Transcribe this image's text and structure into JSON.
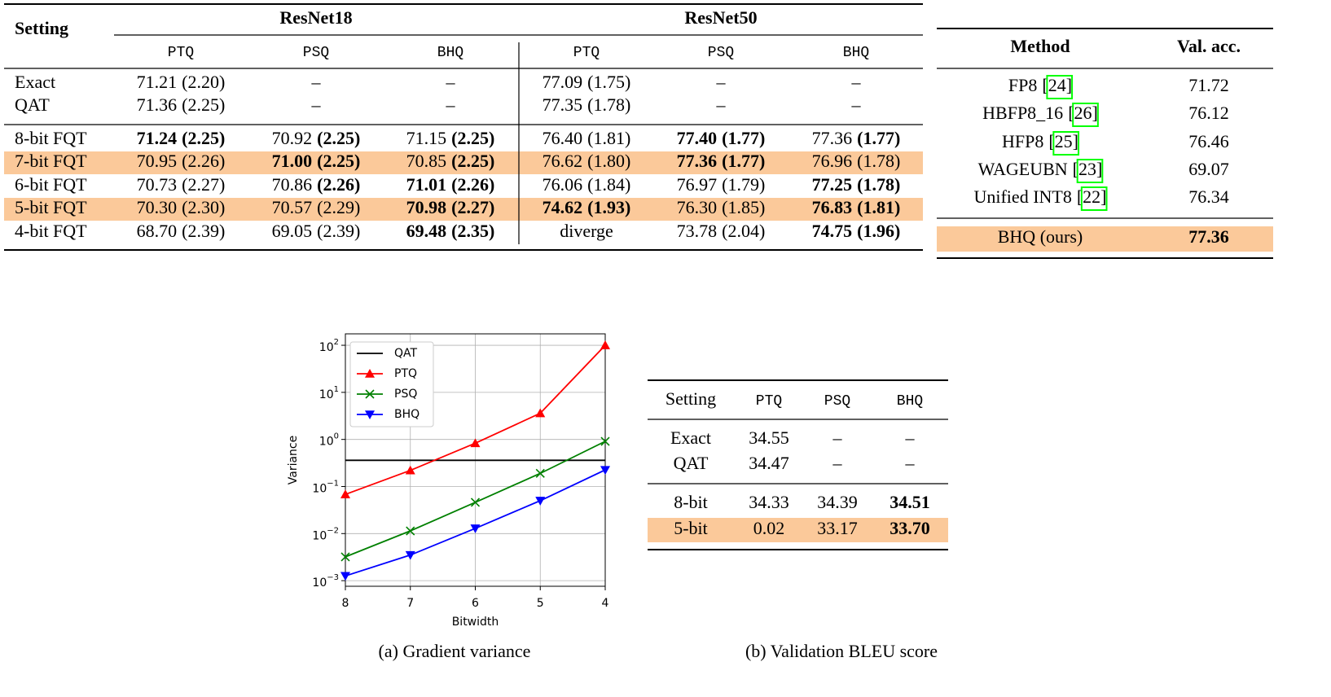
{
  "main_table": {
    "header": "Setting",
    "groups": [
      "ResNet18",
      "ResNet50"
    ],
    "columns": [
      "PTQ",
      "PSQ",
      "BHQ",
      "PTQ",
      "PSQ",
      "BHQ"
    ],
    "rows": [
      {
        "label": "Exact",
        "cells": [
          {
            "acc": "71.21",
            "var": "(2.20)"
          },
          {
            "text": "–"
          },
          {
            "text": "–"
          },
          {
            "acc": "77.09",
            "var": "(1.75)"
          },
          {
            "text": "–"
          },
          {
            "text": "–"
          }
        ]
      },
      {
        "label": "QAT",
        "cells": [
          {
            "acc": "71.36",
            "var": "(2.25)"
          },
          {
            "text": "–"
          },
          {
            "text": "–"
          },
          {
            "acc": "77.35",
            "var": "(1.78)"
          },
          {
            "text": "–"
          },
          {
            "text": "–"
          }
        ]
      },
      {
        "label": "8-bit FQT",
        "rule_before": true,
        "cells": [
          {
            "acc": "71.24",
            "var": "(2.25)",
            "acc_bold": true,
            "var_bold": true
          },
          {
            "acc": "70.92",
            "var": "(2.25)",
            "var_bold": true
          },
          {
            "acc": "71.15",
            "var": "(2.25)",
            "var_bold": true
          },
          {
            "acc": "76.40",
            "var": "(1.81)"
          },
          {
            "acc": "77.40",
            "var": "(1.77)",
            "acc_bold": true,
            "var_bold": true
          },
          {
            "acc": "77.36",
            "var": "(1.77)",
            "var_bold": true
          }
        ]
      },
      {
        "label": "7-bit FQT",
        "highlight": true,
        "cells": [
          {
            "acc": "70.95",
            "var": "(2.26)"
          },
          {
            "acc": "71.00",
            "var": "(2.25)",
            "acc_bold": true,
            "var_bold": true
          },
          {
            "acc": "70.85",
            "var": "(2.25)",
            "var_bold": true
          },
          {
            "acc": "76.62",
            "var": "(1.80)"
          },
          {
            "acc": "77.36",
            "var": "(1.77)",
            "acc_bold": true,
            "var_bold": true
          },
          {
            "acc": "76.96",
            "var": "(1.78)"
          }
        ]
      },
      {
        "label": "6-bit FQT",
        "cells": [
          {
            "acc": "70.73",
            "var": "(2.27)"
          },
          {
            "acc": "70.86",
            "var": "(2.26)",
            "var_bold": true
          },
          {
            "acc": "71.01",
            "var": "(2.26)",
            "acc_bold": true,
            "var_bold": true
          },
          {
            "acc": "76.06",
            "var": "(1.84)"
          },
          {
            "acc": "76.97",
            "var": "(1.79)"
          },
          {
            "acc": "77.25",
            "var": "(1.78)",
            "acc_bold": true,
            "var_bold": true
          }
        ]
      },
      {
        "label": "5-bit FQT",
        "highlight": true,
        "cells": [
          {
            "acc": "70.30",
            "var": "(2.30)"
          },
          {
            "acc": "70.57",
            "var": "(2.29)"
          },
          {
            "acc": "70.98",
            "var": "(2.27)",
            "acc_bold": true,
            "var_bold": true
          },
          {
            "acc": "74.62",
            "var": "(1.93)",
            "acc_bold": true,
            "var_bold": true
          },
          {
            "acc": "76.30",
            "var": "(1.85)"
          },
          {
            "acc": "76.83",
            "var": "(1.81)",
            "acc_bold": true,
            "var_bold": true
          }
        ]
      },
      {
        "label": "4-bit FQT",
        "cells": [
          {
            "acc": "68.70",
            "var": "(2.39)"
          },
          {
            "acc": "69.05",
            "var": "(2.39)"
          },
          {
            "acc": "69.48",
            "var": "(2.35)",
            "acc_bold": true,
            "var_bold": true
          },
          {
            "text": "diverge"
          },
          {
            "acc": "73.78",
            "var": "(2.04)"
          },
          {
            "acc": "74.75",
            "var": "(1.96)",
            "acc_bold": true,
            "var_bold": true
          }
        ]
      }
    ]
  },
  "method_table": {
    "columns": [
      "Method",
      "Val. acc."
    ],
    "rows": [
      {
        "method": "FP8",
        "cite": "[24]",
        "acc": "71.72"
      },
      {
        "method": "HBFP8_16",
        "cite": "[26]",
        "acc": "76.12"
      },
      {
        "method": "HFP8",
        "cite": "[25]",
        "acc": "76.46"
      },
      {
        "method": "WAGEUBN",
        "cite": "[23]",
        "acc": "69.07"
      },
      {
        "method": "Unified INT8",
        "cite": "[22]",
        "acc": "76.34"
      },
      {
        "method": "BHQ (ours)",
        "acc": "77.36",
        "acc_bold": true,
        "highlight": true,
        "rule_before": true
      }
    ]
  },
  "chart_data": {
    "type": "line",
    "xlabel": "Bitwidth",
    "ylabel": "Variance",
    "caption": "(a) Gradient variance",
    "x": [
      8,
      7,
      6,
      5,
      4
    ],
    "xlim": [
      8,
      4
    ],
    "xticks": [
      8,
      7,
      6,
      5,
      4
    ],
    "ylim": [
      0.00076,
      175
    ],
    "log_y": true,
    "grid": true,
    "legend": "upper left",
    "yticks": [
      {
        "value": 0.001,
        "label": "10",
        "exponent": "−3"
      },
      {
        "value": 0.01,
        "label": "10",
        "exponent": "−2"
      },
      {
        "value": 0.1,
        "label": "10",
        "exponent": "−1"
      },
      {
        "value": 1,
        "label": "10",
        "exponent": "0"
      },
      {
        "value": 10,
        "label": "10",
        "exponent": "1"
      },
      {
        "value": 100,
        "label": "10",
        "exponent": "2"
      }
    ],
    "series": [
      {
        "name": "QAT",
        "color": "#000000",
        "marker": "none",
        "values": [
          0.36,
          0.36,
          0.36,
          0.36,
          0.36
        ]
      },
      {
        "name": "PTQ",
        "color": "#ff0000",
        "marker": "triangle-up",
        "values": [
          0.068,
          0.22,
          0.83,
          3.6,
          100
        ]
      },
      {
        "name": "PSQ",
        "color": "#008000",
        "marker": "x",
        "values": [
          0.0032,
          0.0114,
          0.046,
          0.19,
          0.91
        ]
      },
      {
        "name": "BHQ",
        "color": "#0000ff",
        "marker": "triangle-down",
        "values": [
          0.00126,
          0.0035,
          0.0129,
          0.05,
          0.225
        ]
      }
    ]
  },
  "bleu_table": {
    "caption": "(b) Validation BLEU score",
    "columns": [
      "Setting",
      "PTQ",
      "PSQ",
      "BHQ"
    ],
    "rows": [
      {
        "cells": [
          "Exact",
          "34.55",
          "–",
          "–"
        ]
      },
      {
        "cells": [
          "QAT",
          "34.47",
          "–",
          "–"
        ]
      },
      {
        "cells": [
          "8-bit",
          "34.33",
          "34.39",
          "34.51"
        ],
        "bold": [
          false,
          false,
          false,
          true
        ],
        "rule_before": true
      },
      {
        "cells": [
          "5-bit",
          "0.02",
          "33.17",
          "33.70"
        ],
        "bold": [
          false,
          false,
          false,
          true
        ],
        "highlight": true
      }
    ]
  }
}
